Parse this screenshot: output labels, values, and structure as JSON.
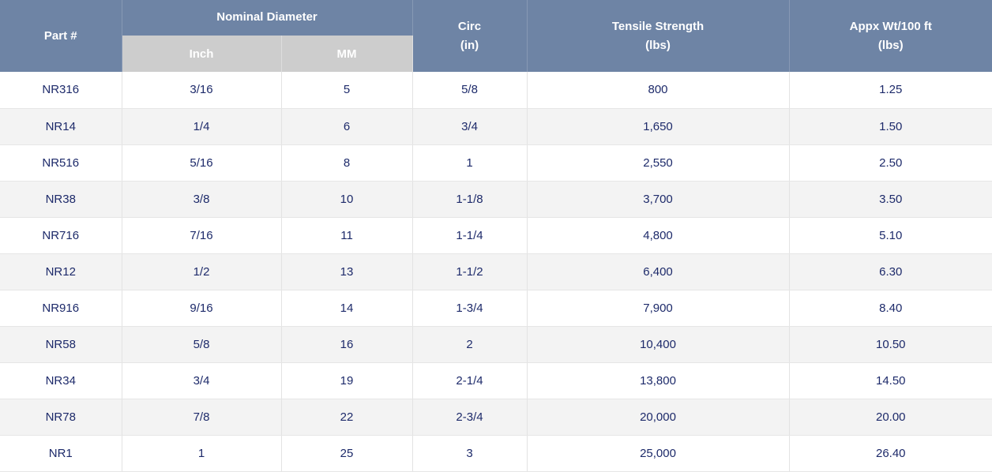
{
  "header": {
    "part": "Part #",
    "nominal": "Nominal Diameter",
    "inch": "Inch",
    "mm": "MM",
    "circ_line1": "Circ",
    "circ_line2": "(in)",
    "tensile_line1": "Tensile Strength",
    "tensile_line2": "(lbs)",
    "weight_line1": "Appx Wt/100 ft",
    "weight_line2": "(lbs)"
  },
  "rows": [
    {
      "part": "NR316",
      "inch": "3/16",
      "mm": "5",
      "circ": "5/8",
      "tensile": "800",
      "weight": "1.25"
    },
    {
      "part": "NR14",
      "inch": "1/4",
      "mm": "6",
      "circ": "3/4",
      "tensile": "1,650",
      "weight": "1.50"
    },
    {
      "part": "NR516",
      "inch": "5/16",
      "mm": "8",
      "circ": "1",
      "tensile": "2,550",
      "weight": "2.50"
    },
    {
      "part": "NR38",
      "inch": "3/8",
      "mm": "10",
      "circ": "1-1/8",
      "tensile": "3,700",
      "weight": "3.50"
    },
    {
      "part": "NR716",
      "inch": "7/16",
      "mm": "11",
      "circ": "1-1/4",
      "tensile": "4,800",
      "weight": "5.10"
    },
    {
      "part": "NR12",
      "inch": "1/2",
      "mm": "13",
      "circ": "1-1/2",
      "tensile": "6,400",
      "weight": "6.30"
    },
    {
      "part": "NR916",
      "inch": "9/16",
      "mm": "14",
      "circ": "1-3/4",
      "tensile": "7,900",
      "weight": "8.40"
    },
    {
      "part": "NR58",
      "inch": "5/8",
      "mm": "16",
      "circ": "2",
      "tensile": "10,400",
      "weight": "10.50"
    },
    {
      "part": "NR34",
      "inch": "3/4",
      "mm": "19",
      "circ": "2-1/4",
      "tensile": "13,800",
      "weight": "14.50"
    },
    {
      "part": "NR78",
      "inch": "7/8",
      "mm": "22",
      "circ": "2-3/4",
      "tensile": "20,000",
      "weight": "20.00"
    },
    {
      "part": "NR1",
      "inch": "1",
      "mm": "25",
      "circ": "3",
      "tensile": "25,000",
      "weight": "26.40"
    }
  ]
}
